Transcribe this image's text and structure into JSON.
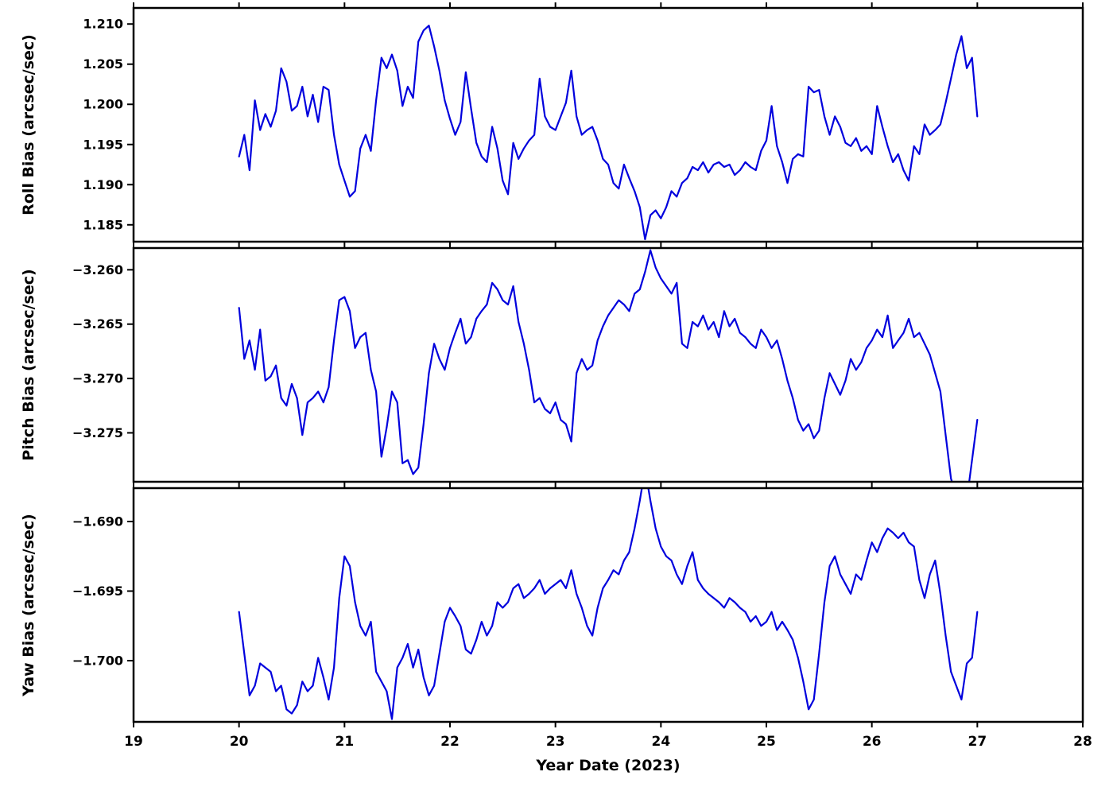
{
  "figure": {
    "xlabel": "Year Date (2023)",
    "xlim": [
      19,
      28
    ],
    "xticks": [
      19,
      20,
      21,
      22,
      23,
      24,
      25,
      26,
      27,
      28
    ],
    "line_color": "#0000dd",
    "axis_color": "#000000",
    "background": "#ffffff"
  },
  "chart_data": [
    {
      "type": "line",
      "name": "roll-bias",
      "ylabel": "Roll Bias (arcsec/sec)",
      "ylim": [
        1.1829,
        1.212
      ],
      "yticks": [
        1.185,
        1.19,
        1.195,
        1.2,
        1.205,
        1.21
      ],
      "ytick_labels": [
        "1.185",
        "1.190",
        "1.195",
        "1.200",
        "1.205",
        "1.210"
      ],
      "x_start": 20.0,
      "x_step": 0.05,
      "x_end": 27.0,
      "values": [
        1.1935,
        1.1962,
        1.1918,
        1.2005,
        1.1968,
        1.1988,
        1.1972,
        1.1992,
        1.2045,
        1.2028,
        1.1992,
        1.1998,
        1.2022,
        1.1985,
        1.2012,
        1.1978,
        1.2022,
        1.2018,
        1.1962,
        1.1925,
        1.1905,
        1.1885,
        1.1892,
        1.1945,
        1.1962,
        1.1942,
        1.2005,
        1.2058,
        1.2045,
        1.2062,
        1.2042,
        1.1998,
        1.2022,
        1.2008,
        1.2078,
        1.2092,
        1.2098,
        1.2072,
        1.2042,
        1.2005,
        1.1982,
        1.1962,
        1.1978,
        1.204,
        1.1995,
        1.1952,
        1.1935,
        1.1928,
        1.1972,
        1.1945,
        1.1905,
        1.1888,
        1.1952,
        1.1932,
        1.1945,
        1.1955,
        1.1962,
        1.2032,
        1.1985,
        1.1972,
        1.1968,
        1.1985,
        1.2002,
        1.2042,
        1.1985,
        1.1962,
        1.1968,
        1.1972,
        1.1955,
        1.1932,
        1.1925,
        1.1902,
        1.1895,
        1.1925,
        1.1908,
        1.1892,
        1.1872,
        1.1832,
        1.1862,
        1.1868,
        1.1858,
        1.1872,
        1.1892,
        1.1885,
        1.1902,
        1.1908,
        1.1922,
        1.1918,
        1.1928,
        1.1915,
        1.1925,
        1.1928,
        1.1922,
        1.1925,
        1.1912,
        1.1918,
        1.1928,
        1.1922,
        1.1918,
        1.1942,
        1.1955,
        1.1998,
        1.1948,
        1.1928,
        1.1902,
        1.1932,
        1.1938,
        1.1935,
        1.2022,
        1.2015,
        1.2018,
        1.1985,
        1.1962,
        1.1985,
        1.1972,
        1.1952,
        1.1948,
        1.1958,
        1.1942,
        1.1948,
        1.1938,
        1.1998,
        1.1972,
        1.1948,
        1.1928,
        1.1938,
        1.1918,
        1.1905,
        1.1948,
        1.1938,
        1.1975,
        1.1962,
        1.1968,
        1.1975,
        1.2002,
        1.2032,
        1.2062,
        1.2085,
        1.2045,
        1.2058,
        1.1985
      ]
    },
    {
      "type": "line",
      "name": "pitch-bias",
      "ylabel": "Pitch Bias (arcsec/sec)",
      "ylim": [
        -3.2795,
        -3.258
      ],
      "yticks": [
        -3.275,
        -3.27,
        -3.265,
        -3.26
      ],
      "ytick_labels": [
        "−3.275",
        "−3.270",
        "−3.265",
        "−3.260"
      ],
      "x_start": 20.0,
      "x_step": 0.05,
      "x_end": 27.0,
      "values": [
        -3.2635,
        -3.2682,
        -3.2665,
        -3.2692,
        -3.2655,
        -3.2702,
        -3.2698,
        -3.2688,
        -3.2718,
        -3.2725,
        -3.2705,
        -3.2718,
        -3.2752,
        -3.2722,
        -3.2718,
        -3.2712,
        -3.2722,
        -3.2708,
        -3.2665,
        -3.2628,
        -3.2625,
        -3.2638,
        -3.2672,
        -3.2662,
        -3.2658,
        -3.2692,
        -3.2712,
        -3.2772,
        -3.2745,
        -3.2712,
        -3.2722,
        -3.2778,
        -3.2775,
        -3.2788,
        -3.2782,
        -3.2742,
        -3.2695,
        -3.2668,
        -3.2682,
        -3.2692,
        -3.2672,
        -3.2658,
        -3.2645,
        -3.2668,
        -3.2662,
        -3.2645,
        -3.2638,
        -3.2632,
        -3.2612,
        -3.2618,
        -3.2628,
        -3.2632,
        -3.2615,
        -3.2648,
        -3.2668,
        -3.2692,
        -3.2722,
        -3.2718,
        -3.2728,
        -3.2732,
        -3.2722,
        -3.2738,
        -3.2742,
        -3.2758,
        -3.2695,
        -3.2682,
        -3.2692,
        -3.2688,
        -3.2665,
        -3.2652,
        -3.2642,
        -3.2635,
        -3.2628,
        -3.2632,
        -3.2638,
        -3.2622,
        -3.2618,
        -3.2602,
        -3.2582,
        -3.2598,
        -3.2608,
        -3.2615,
        -3.2622,
        -3.2612,
        -3.2668,
        -3.2672,
        -3.2648,
        -3.2652,
        -3.2642,
        -3.2655,
        -3.2648,
        -3.2662,
        -3.2638,
        -3.2652,
        -3.2645,
        -3.2658,
        -3.2662,
        -3.2668,
        -3.2672,
        -3.2655,
        -3.2662,
        -3.2672,
        -3.2665,
        -3.2682,
        -3.2702,
        -3.2718,
        -3.2738,
        -3.2748,
        -3.2742,
        -3.2755,
        -3.2748,
        -3.2718,
        -3.2695,
        -3.2705,
        -3.2715,
        -3.2702,
        -3.2682,
        -3.2692,
        -3.2685,
        -3.2672,
        -3.2665,
        -3.2655,
        -3.2662,
        -3.2642,
        -3.2672,
        -3.2665,
        -3.2658,
        -3.2645,
        -3.2662,
        -3.2658,
        -3.2668,
        -3.2678,
        -3.2695,
        -3.2712,
        -3.2752,
        -3.2792,
        -3.2808,
        -3.2798,
        -3.2812,
        -3.2775,
        -3.2738
      ]
    },
    {
      "type": "line",
      "name": "yaw-bias",
      "ylabel": "Yaw Bias (arcsec/sec)",
      "ylim": [
        -1.7044,
        -1.6876
      ],
      "yticks": [
        -1.7,
        -1.695,
        -1.69
      ],
      "ytick_labels": [
        "−1.700",
        "−1.695",
        "−1.690"
      ],
      "x_start": 20.0,
      "x_step": 0.05,
      "x_end": 27.0,
      "values": [
        -1.6965,
        -1.6995,
        -1.7025,
        -1.7018,
        -1.7002,
        -1.7005,
        -1.7008,
        -1.7022,
        -1.7018,
        -1.7035,
        -1.7038,
        -1.7032,
        -1.7015,
        -1.7022,
        -1.7018,
        -1.6998,
        -1.7012,
        -1.7028,
        -1.7005,
        -1.6955,
        -1.6925,
        -1.6932,
        -1.6958,
        -1.6975,
        -1.6982,
        -1.6972,
        -1.7008,
        -1.7015,
        -1.7022,
        -1.7042,
        -1.7005,
        -1.6998,
        -1.6988,
        -1.7005,
        -1.6992,
        -1.7012,
        -1.7025,
        -1.7018,
        -1.6995,
        -1.6972,
        -1.6962,
        -1.6968,
        -1.6975,
        -1.6992,
        -1.6995,
        -1.6985,
        -1.6972,
        -1.6982,
        -1.6975,
        -1.6958,
        -1.6962,
        -1.6958,
        -1.6948,
        -1.6945,
        -1.6955,
        -1.6952,
        -1.6948,
        -1.6942,
        -1.6952,
        -1.6948,
        -1.6945,
        -1.6942,
        -1.6948,
        -1.6935,
        -1.6952,
        -1.6962,
        -1.6975,
        -1.6982,
        -1.6962,
        -1.6948,
        -1.6942,
        -1.6935,
        -1.6938,
        -1.6928,
        -1.6922,
        -1.6905,
        -1.6885,
        -1.6862,
        -1.6885,
        -1.6905,
        -1.6918,
        -1.6925,
        -1.6928,
        -1.6938,
        -1.6945,
        -1.6932,
        -1.6922,
        -1.6942,
        -1.6948,
        -1.6952,
        -1.6955,
        -1.6958,
        -1.6962,
        -1.6955,
        -1.6958,
        -1.6962,
        -1.6965,
        -1.6972,
        -1.6968,
        -1.6975,
        -1.6972,
        -1.6965,
        -1.6978,
        -1.6972,
        -1.6978,
        -1.6985,
        -1.6998,
        -1.7015,
        -1.7035,
        -1.7028,
        -1.6995,
        -1.6958,
        -1.6932,
        -1.6925,
        -1.6938,
        -1.6945,
        -1.6952,
        -1.6938,
        -1.6942,
        -1.6928,
        -1.6915,
        -1.6922,
        -1.6912,
        -1.6905,
        -1.6908,
        -1.6912,
        -1.6908,
        -1.6915,
        -1.6918,
        -1.6942,
        -1.6955,
        -1.6938,
        -1.6928,
        -1.6952,
        -1.6982,
        -1.7008,
        -1.7018,
        -1.7028,
        -1.7002,
        -1.6998,
        -1.6965
      ]
    }
  ]
}
